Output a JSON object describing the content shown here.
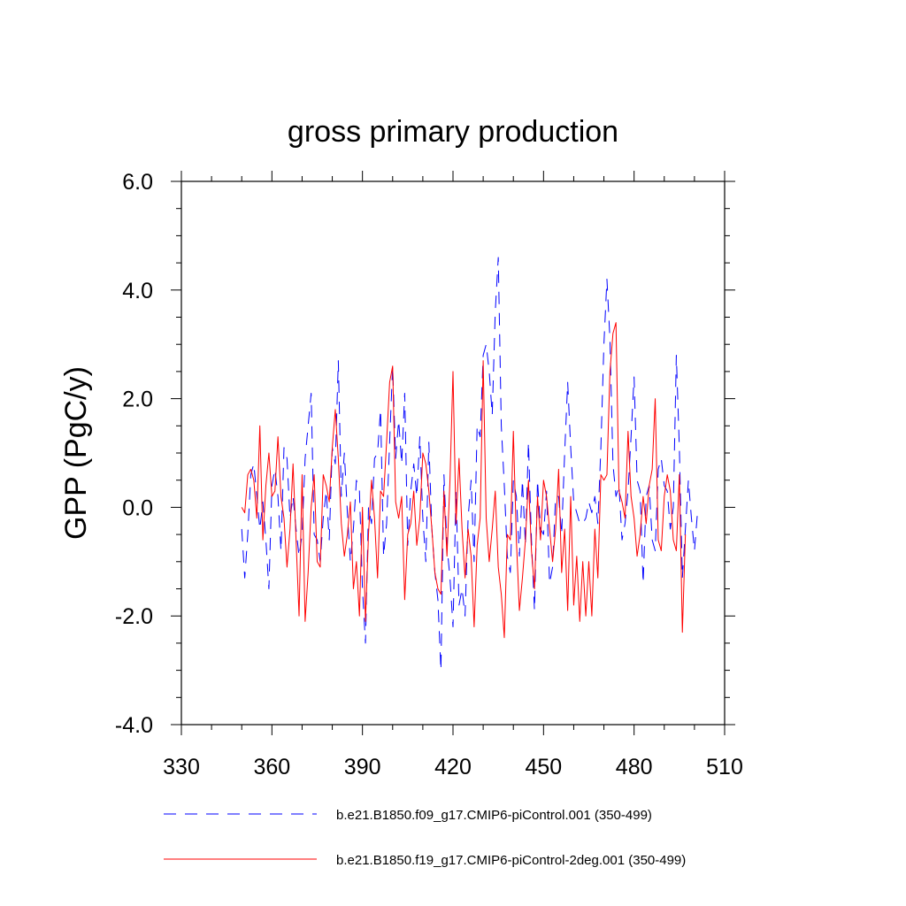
{
  "chart_data": {
    "type": "line",
    "title": "gross primary production",
    "xlabel": "",
    "ylabel": "GPP  (PgC/y)",
    "xlim": [
      330,
      510
    ],
    "ylim": [
      -4.0,
      6.0
    ],
    "x_ticks": [
      330,
      360,
      390,
      420,
      450,
      480,
      510
    ],
    "x_tick_labels": [
      "330",
      "360",
      "390",
      "420",
      "450",
      "480",
      "510"
    ],
    "y_ticks": [
      -4.0,
      -2.0,
      0.0,
      2.0,
      4.0,
      6.0
    ],
    "y_tick_labels": [
      "-4.0",
      "-2.0",
      "0.0",
      "2.0",
      "4.0",
      "6.0"
    ],
    "x_minor_step": 10,
    "y_minor_step": 0.5,
    "grid": false,
    "legend_position": "bottom",
    "series": [
      {
        "name": "b.e21.B1850.f09_g17.CMIP6-piControl.001 (350-499)",
        "color": "#0000ff",
        "dash": "dashed",
        "x_start": 350,
        "values": [
          -0.4,
          -1.3,
          -0.5,
          0.6,
          0.8,
          0.2,
          -0.4,
          0.1,
          -0.6,
          -1.5,
          0.4,
          0.7,
          0.2,
          -0.8,
          1.1,
          0.9,
          -0.2,
          0.2,
          -0.4,
          -0.9,
          -0.5,
          0.9,
          1.5,
          2.1,
          -0.5,
          -0.6,
          -1.0,
          -0.2,
          0.3,
          -0.6,
          1.1,
          0.8,
          2.7,
          0.2,
          1.0,
          -0.1,
          -1.0,
          -0.4,
          0.5,
          0.3,
          -1.5,
          -2.5,
          0.0,
          -0.3,
          0.9,
          1.0,
          1.8,
          -0.9,
          -0.3,
          1.2,
          2.6,
          0.9,
          1.6,
          0.8,
          2.1,
          -0.7,
          0.3,
          0.8,
          0.2,
          1.3,
          -0.2,
          -1.0,
          1.2,
          -0.4,
          -1.2,
          -1.7,
          -3.0,
          0.6,
          -0.7,
          -1.3,
          -2.2,
          0.3,
          -1.8,
          -1.5,
          -2.0,
          -0.2,
          0.5,
          -1.0,
          1.5,
          1.3,
          2.8,
          3.0,
          2.5,
          1.7,
          3.6,
          4.6,
          1.5,
          0.4,
          -0.9,
          -1.2,
          0.5,
          0.2,
          -0.9,
          0.5,
          -0.7,
          1.2,
          -0.6,
          -1.9,
          0.5,
          -0.4,
          -0.5,
          0.3,
          -1.4,
          -1.1,
          0.2,
          0.2,
          -0.5,
          1.0,
          2.3,
          1.1,
          0.1,
          -0.1,
          -0.3,
          -0.3,
          -0.2,
          0.1,
          -0.1,
          0.2,
          -0.3,
          1.1,
          3.0,
          4.2,
          3.1,
          0.8,
          0.2,
          0.4,
          -0.6,
          -0.3,
          0.3,
          1.3,
          2.4,
          0.5,
          0.3,
          -1.4,
          0.2,
          0.4,
          -0.6,
          -0.8,
          0.7,
          0.9,
          0.4,
          0.3,
          -0.4,
          0.0,
          2.8,
          1.1,
          -1.3,
          -0.4,
          0.5,
          -0.2,
          -0.8,
          -0.1
        ]
      },
      {
        "name": "b.e21.B1850.f19_g17.CMIP6-piControl-2deg.001 (350-499)",
        "color": "#ff0000",
        "dash": "solid",
        "x_start": 350,
        "values": [
          0.0,
          -0.1,
          0.6,
          0.7,
          0.5,
          -0.2,
          1.5,
          -0.6,
          0.4,
          1.0,
          0.2,
          0.3,
          1.3,
          0.2,
          -0.2,
          -1.1,
          -0.4,
          0.8,
          -0.6,
          -2.0,
          0.6,
          -2.1,
          -1.2,
          0.0,
          0.6,
          -1.0,
          -1.1,
          0.6,
          0.4,
          0.1,
          1.1,
          1.8,
          0.9,
          -0.3,
          -0.9,
          -0.5,
          0.1,
          -1.5,
          -1.0,
          -2.0,
          0.0,
          -2.1,
          -0.5,
          0.5,
          -0.2,
          -1.3,
          0.3,
          0.2,
          1.2,
          2.3,
          2.6,
          0.1,
          -0.2,
          0.2,
          -1.7,
          -0.5,
          -0.3,
          0.3,
          -0.7,
          -0.2,
          1.0,
          0.8,
          0.3,
          -0.4,
          -1.2,
          -1.5,
          -1.6,
          0.3,
          -0.9,
          0.5,
          2.5,
          -0.3,
          0.9,
          -0.4,
          -1.3,
          -0.4,
          -0.9,
          -2.2,
          -0.7,
          -0.2,
          2.7,
          -0.2,
          -1.0,
          -0.4,
          0.3,
          -1.1,
          -1.6,
          -2.4,
          -0.5,
          -0.6,
          1.4,
          -0.6,
          -1.9,
          -1.3,
          -0.6,
          0.5,
          -0.8,
          -1.5,
          0.2,
          -0.6,
          0.5,
          0.2,
          -0.4,
          -1.0,
          -0.4,
          0.7,
          -1.2,
          -0.4,
          -1.9,
          0.2,
          -1.8,
          -0.9,
          -2.1,
          -1.0,
          -2.0,
          -1.0,
          -2.0,
          -0.4,
          -1.3,
          0.6,
          0.5,
          0.6,
          2.5,
          3.2,
          3.4,
          0.3,
          0.1,
          -0.2,
          1.4,
          0.2,
          -0.2,
          -0.9,
          -0.5,
          0.2,
          -0.3,
          0.4,
          0.7,
          2.0,
          -0.6,
          -0.8,
          0.2,
          0.6,
          0.3,
          -0.6,
          -0.8,
          0.6,
          -2.3,
          -0.5
        ]
      }
    ]
  }
}
